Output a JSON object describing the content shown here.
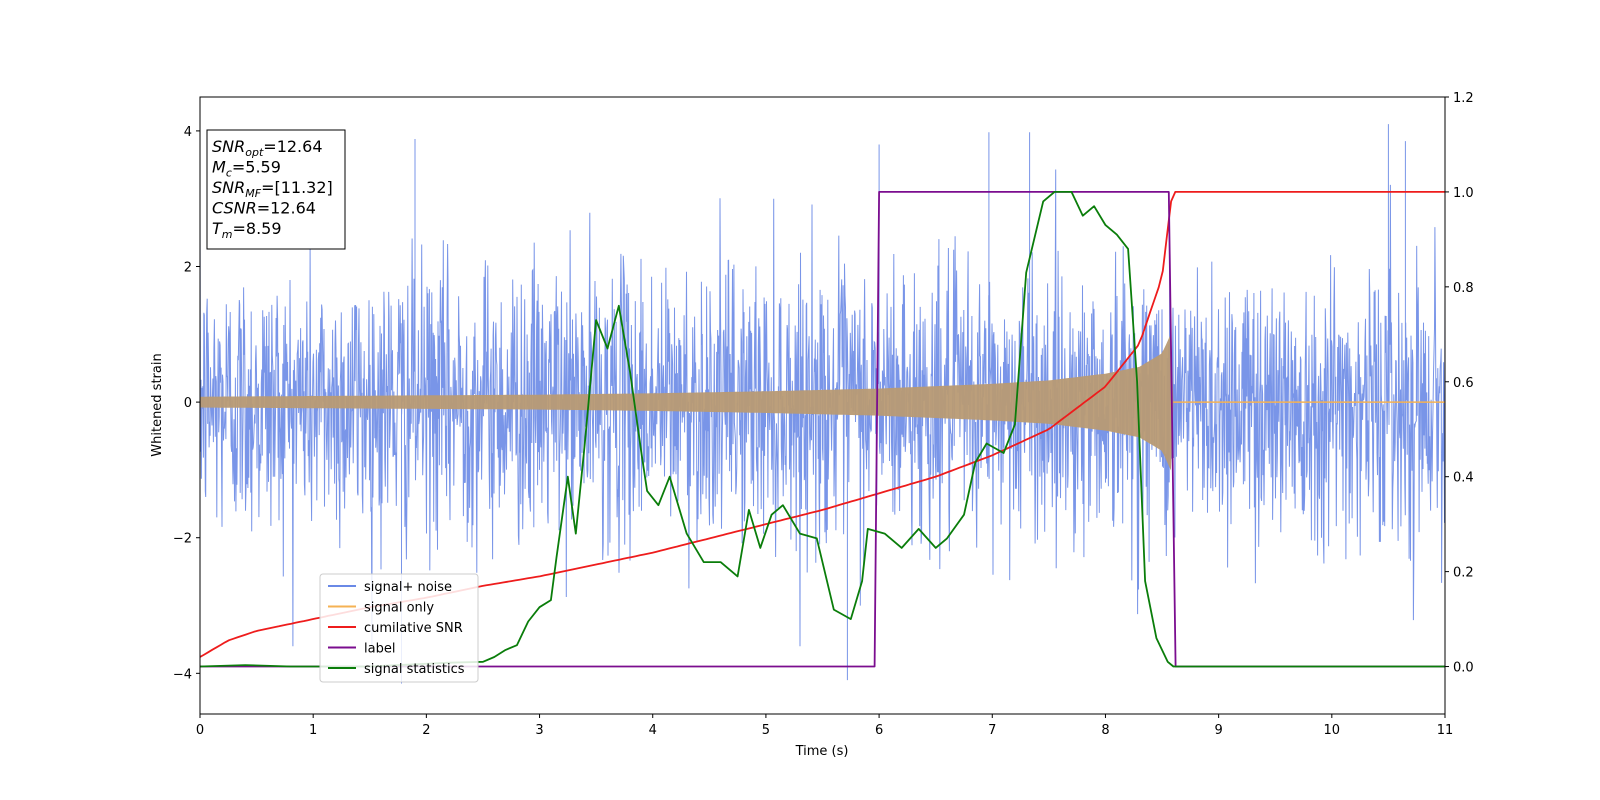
{
  "chart_data": {
    "type": "line",
    "title": "",
    "xlabel": "Time (s)",
    "ylabel": "Whitened strain",
    "xlim": [
      0,
      11
    ],
    "ylim": [
      -4.6,
      4.5
    ],
    "y2lim": [
      -0.1,
      1.2
    ],
    "x_ticks": [
      "0",
      "1",
      "2",
      "3",
      "4",
      "5",
      "6",
      "7",
      "8",
      "9",
      "10",
      "11"
    ],
    "y_ticks": [
      "−4",
      "−2",
      "0",
      "2",
      "4"
    ],
    "y2_ticks": [
      "0.0",
      "0.2",
      "0.4",
      "0.6",
      "0.8",
      "1.0",
      "1.2"
    ],
    "grid": false,
    "legend_position": "lower-left",
    "annotation": {
      "lines": [
        {
          "sym": "SNR",
          "sub": "opt",
          "rest": "=12.64"
        },
        {
          "sym": "M",
          "sub": "c",
          "rest": "=5.59"
        },
        {
          "sym": "SNR",
          "sub": "MF",
          "rest": "=[11.32]"
        },
        {
          "sym": "CSNR",
          "sub": "",
          "rest": "=12.64"
        },
        {
          "sym": "T",
          "sub": "m",
          "rest": "=8.59"
        }
      ]
    },
    "series": [
      {
        "name": "signal+ noise",
        "color": "#6a89e6",
        "axis": "left",
        "envelope": {
          "min_typ": -2.4,
          "max_typ": 2.4,
          "extremes": [
            [
              1.78,
              -4.15
            ],
            [
              5.72,
              -4.1
            ],
            [
              10.5,
              4.1
            ],
            [
              6.97,
              3.98
            ],
            [
              7.33,
              3.98
            ],
            [
              1.9,
              3.88
            ],
            [
              10.65,
              3.85
            ],
            [
              6.0,
              3.8
            ]
          ]
        }
      },
      {
        "name": "signal only",
        "color": "#f5b253",
        "axis": "left",
        "envelope_points": [
          [
            0,
            0.08
          ],
          [
            1,
            0.09
          ],
          [
            2,
            0.1
          ],
          [
            3,
            0.11
          ],
          [
            4,
            0.13
          ],
          [
            5,
            0.16
          ],
          [
            6,
            0.2
          ],
          [
            7,
            0.27
          ],
          [
            7.5,
            0.32
          ],
          [
            8,
            0.42
          ],
          [
            8.3,
            0.52
          ],
          [
            8.5,
            0.72
          ],
          [
            8.59,
            1.05
          ],
          [
            8.6,
            0.0
          ],
          [
            11,
            0.0
          ]
        ]
      },
      {
        "name": "cumilative SNR",
        "color": "#ee1c1c",
        "axis": "right",
        "points": [
          [
            0,
            0.02
          ],
          [
            0.25,
            0.055
          ],
          [
            0.5,
            0.075
          ],
          [
            1,
            0.1
          ],
          [
            1.5,
            0.125
          ],
          [
            2,
            0.145
          ],
          [
            2.5,
            0.17
          ],
          [
            3,
            0.19
          ],
          [
            3.5,
            0.215
          ],
          [
            4,
            0.24
          ],
          [
            4.5,
            0.27
          ],
          [
            5,
            0.3
          ],
          [
            5.5,
            0.33
          ],
          [
            6,
            0.365
          ],
          [
            6.5,
            0.4
          ],
          [
            7,
            0.445
          ],
          [
            7.5,
            0.5
          ],
          [
            8,
            0.59
          ],
          [
            8.3,
            0.68
          ],
          [
            8.5,
            0.82
          ],
          [
            8.59,
            1.0
          ],
          [
            11,
            1.0
          ]
        ]
      },
      {
        "name": "label",
        "color": "#7b0d8f",
        "axis": "right",
        "points": [
          [
            0,
            0.0
          ],
          [
            5.96,
            0.0
          ],
          [
            6.0,
            1.0
          ],
          [
            8.56,
            1.0
          ],
          [
            8.62,
            0.0
          ],
          [
            11,
            0.0
          ]
        ]
      },
      {
        "name": "signal statistics",
        "color": "#0a7d0a",
        "axis": "right",
        "points": [
          [
            0,
            0.0
          ],
          [
            0.4,
            0.003
          ],
          [
            0.8,
            0.0
          ],
          [
            1.5,
            0.0
          ],
          [
            2.2,
            0.008
          ],
          [
            2.5,
            0.01
          ],
          [
            2.6,
            0.02
          ],
          [
            2.7,
            0.035
          ],
          [
            2.8,
            0.045
          ],
          [
            2.9,
            0.095
          ],
          [
            3.0,
            0.125
          ],
          [
            3.1,
            0.14
          ],
          [
            3.15,
            0.23
          ],
          [
            3.25,
            0.4
          ],
          [
            3.32,
            0.28
          ],
          [
            3.4,
            0.47
          ],
          [
            3.5,
            0.73
          ],
          [
            3.6,
            0.67
          ],
          [
            3.7,
            0.76
          ],
          [
            3.8,
            0.62
          ],
          [
            3.9,
            0.45
          ],
          [
            3.95,
            0.37
          ],
          [
            4.05,
            0.34
          ],
          [
            4.15,
            0.4
          ],
          [
            4.3,
            0.28
          ],
          [
            4.45,
            0.22
          ],
          [
            4.6,
            0.22
          ],
          [
            4.75,
            0.19
          ],
          [
            4.85,
            0.33
          ],
          [
            4.95,
            0.25
          ],
          [
            5.05,
            0.32
          ],
          [
            5.15,
            0.34
          ],
          [
            5.3,
            0.28
          ],
          [
            5.45,
            0.27
          ],
          [
            5.6,
            0.12
          ],
          [
            5.75,
            0.1
          ],
          [
            5.85,
            0.18
          ],
          [
            5.9,
            0.29
          ],
          [
            6.05,
            0.28
          ],
          [
            6.2,
            0.25
          ],
          [
            6.35,
            0.29
          ],
          [
            6.5,
            0.25
          ],
          [
            6.6,
            0.27
          ],
          [
            6.75,
            0.32
          ],
          [
            6.85,
            0.43
          ],
          [
            6.95,
            0.47
          ],
          [
            7.1,
            0.45
          ],
          [
            7.2,
            0.51
          ],
          [
            7.3,
            0.83
          ],
          [
            7.45,
            0.98
          ],
          [
            7.55,
            1.0
          ],
          [
            7.7,
            1.0
          ],
          [
            7.8,
            0.95
          ],
          [
            7.9,
            0.97
          ],
          [
            8.0,
            0.93
          ],
          [
            8.1,
            0.91
          ],
          [
            8.2,
            0.88
          ],
          [
            8.28,
            0.6
          ],
          [
            8.35,
            0.18
          ],
          [
            8.45,
            0.06
          ],
          [
            8.55,
            0.01
          ],
          [
            8.6,
            0.0
          ],
          [
            11,
            0.0
          ]
        ]
      }
    ]
  }
}
